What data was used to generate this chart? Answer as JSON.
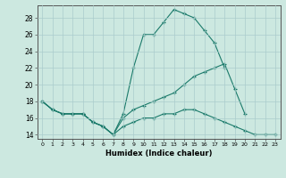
{
  "xlabel": "Humidex (Indice chaleur)",
  "background_color": "#cce8e0",
  "grid_color": "#aacccc",
  "line_color": "#1a7a6a",
  "xlim": [
    -0.5,
    23.5
  ],
  "ylim": [
    13.5,
    29.5
  ],
  "xticks": [
    0,
    1,
    2,
    3,
    4,
    5,
    6,
    7,
    8,
    9,
    10,
    11,
    12,
    13,
    14,
    15,
    16,
    17,
    18,
    19,
    20,
    21,
    22,
    23
  ],
  "yticks": [
    14,
    16,
    18,
    20,
    22,
    24,
    26,
    28
  ],
  "line1_x": [
    0,
    1,
    2,
    3,
    4,
    5,
    6,
    7,
    8,
    9,
    10,
    11,
    12,
    13,
    14,
    15,
    16,
    17,
    18,
    19
  ],
  "line1_y": [
    18,
    17,
    16.5,
    16.5,
    16.5,
    15.5,
    15,
    14,
    16.5,
    22,
    26,
    26,
    27.5,
    29,
    28.5,
    28,
    26.5,
    25,
    22,
    null
  ],
  "line2_x": [
    0,
    1,
    2,
    3,
    4,
    5,
    6,
    7,
    8,
    9,
    10,
    11,
    12,
    13,
    14,
    15,
    16,
    17,
    18,
    19,
    20,
    21,
    22,
    23
  ],
  "line2_y": [
    18,
    17,
    16.5,
    16.5,
    16.5,
    15.5,
    15,
    14,
    16,
    17,
    17.5,
    18,
    18.5,
    19,
    20,
    21,
    21.5,
    22,
    22.5,
    19.5,
    16.5,
    null,
    null,
    null
  ],
  "line3_x": [
    0,
    1,
    2,
    3,
    4,
    5,
    6,
    7,
    8,
    9,
    10,
    11,
    12,
    13,
    14,
    15,
    16,
    17,
    18,
    19,
    20,
    21,
    22,
    23
  ],
  "line3_y": [
    18,
    17,
    16.5,
    16.5,
    16.5,
    15.5,
    15,
    14,
    15,
    15.5,
    16,
    16,
    16.5,
    16.5,
    17,
    17,
    16.5,
    16,
    15.5,
    15,
    14.5,
    14,
    14,
    14
  ]
}
